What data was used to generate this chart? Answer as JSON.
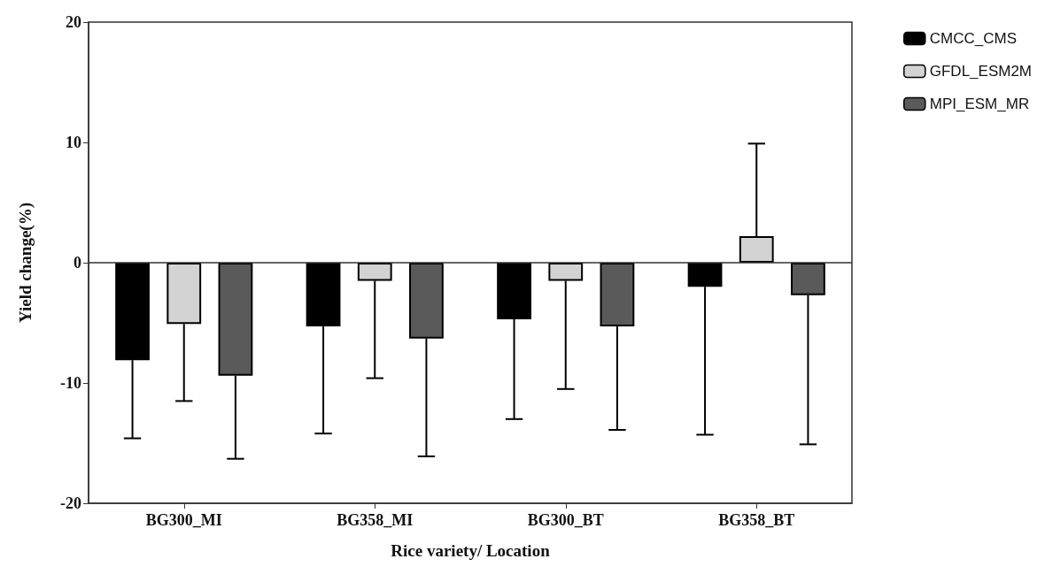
{
  "chart_data": {
    "type": "bar",
    "xlabel": "Rice variety/ Location",
    "ylabel": "Yield change(%)",
    "categories": [
      "BG300_MI",
      "BG358_MI",
      "BG300_BT",
      "BG358_BT"
    ],
    "series": [
      {
        "name": "CMCC_CMS",
        "color": "#000000",
        "values": [
          -8.1,
          -5.3,
          -4.7,
          -2.0
        ],
        "errors": [
          [
            -14.6,
            -8.1
          ],
          [
            -14.2,
            -5.3
          ],
          [
            -13.0,
            -4.7
          ],
          [
            -14.3,
            -2.0
          ]
        ]
      },
      {
        "name": "GFDL_ESM2M",
        "color": "#d3d3d3",
        "values": [
          -5.1,
          -1.5,
          -1.5,
          2.2
        ],
        "errors": [
          [
            -11.5,
            -5.1
          ],
          [
            -9.6,
            -1.5
          ],
          [
            -10.5,
            -1.5
          ],
          [
            2.2,
            9.9
          ]
        ]
      },
      {
        "name": "MPI_ESM_MR",
        "color": "#5a5a5a",
        "values": [
          -9.4,
          -6.3,
          -5.3,
          -2.7
        ],
        "errors": [
          [
            -16.3,
            -9.4
          ],
          [
            -16.1,
            -6.3
          ],
          [
            -13.9,
            -5.3
          ],
          [
            -15.1,
            -2.7
          ]
        ]
      }
    ],
    "ylim": [
      -20,
      20
    ],
    "yticks": [
      -20,
      -10,
      0,
      10,
      20
    ],
    "ref_lines": [
      {
        "axis": "y",
        "value": 0
      }
    ],
    "grid": false,
    "legend": "top right"
  }
}
